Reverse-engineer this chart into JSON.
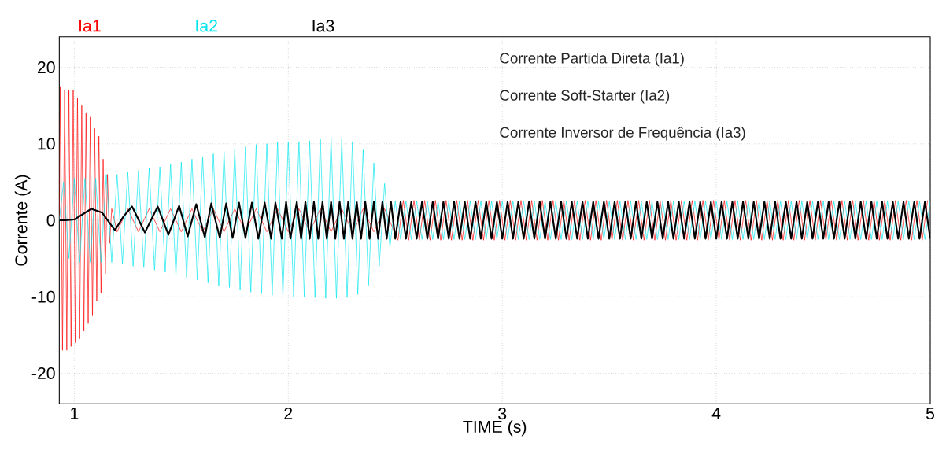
{
  "chart_data": {
    "type": "line",
    "xlabel": "TIME (s)",
    "ylabel": "Corrente (A)",
    "xlim": [
      0.93,
      5
    ],
    "ylim": [
      -24,
      24
    ],
    "xticks": [
      1,
      2,
      3,
      4,
      5
    ],
    "yticks": [
      -20,
      -10,
      0,
      10,
      20
    ],
    "grid": true,
    "legend": "top left",
    "marker": "none",
    "line_style": "solid",
    "annotations": [
      "Corrente Partida Direta (Ia1)",
      "Corrente Soft-Starter (Ia2)",
      "Corrente Inversor de Frequência (Ia3)"
    ],
    "series": [
      {
        "name": "Ia1",
        "color": "#ff0000",
        "x": [
          0.93,
          0.935,
          0.945,
          0.955,
          0.965,
          0.975,
          0.985,
          0.995,
          1.005,
          1.015,
          1.025,
          1.035,
          1.045,
          1.055,
          1.065,
          1.075,
          1.085,
          1.095,
          1.105,
          1.115,
          1.125,
          1.135,
          1.145,
          1.155,
          1.165,
          1.175,
          1.2,
          1.25,
          1.3,
          1.35,
          1.4,
          1.45,
          1.5,
          1.55,
          1.6,
          1.65,
          1.7,
          1.75,
          1.8,
          1.85,
          1.9,
          1.95,
          2.0,
          2.05,
          2.1,
          2.15,
          2.2,
          2.25,
          2.3,
          2.35,
          2.4,
          2.45,
          2.5125,
          2.5375,
          2.5625,
          2.5875,
          2.6125,
          2.6375,
          2.6625,
          2.6875,
          2.7125,
          2.7375,
          2.7625,
          2.7875,
          2.8125,
          2.8375,
          2.8625,
          2.8875,
          2.9125,
          2.9375,
          2.9625,
          2.9875,
          3.0125,
          3.0375,
          3.0625,
          3.0875,
          3.1125,
          3.1375,
          3.1625,
          3.1875,
          3.2125,
          3.2375,
          3.2625,
          3.2875,
          3.3125,
          3.3375,
          3.3625,
          3.3875,
          3.4125,
          3.4375,
          3.4625,
          3.4875,
          3.5125,
          3.5375,
          3.5625,
          3.5875,
          3.6125,
          3.6375,
          3.6625,
          3.6875,
          3.7125,
          3.7375,
          3.7625,
          3.7875,
          3.8125,
          3.8375,
          3.8625,
          3.8875,
          3.9125,
          3.9375,
          3.9625,
          3.9875,
          4.0125,
          4.0375,
          4.0625,
          4.0875,
          4.1125,
          4.1375,
          4.1625,
          4.1875,
          4.2125,
          4.2375,
          4.2625,
          4.2875,
          4.3125,
          4.3375,
          4.3625,
          4.3875,
          4.4125,
          4.4375,
          4.4625,
          4.4875,
          4.5125,
          4.5375,
          4.5625,
          4.5875,
          4.6125,
          4.6375,
          4.6625,
          4.6875,
          4.7125,
          4.7375,
          4.7625,
          4.7875,
          4.8125,
          4.8375,
          4.8625,
          4.8875,
          4.9125,
          4.9375,
          4.9625,
          4.9875
        ],
        "values": [
          0,
          17.5,
          -17,
          17,
          -17,
          17,
          -16.5,
          17,
          -16,
          16,
          -15.5,
          15,
          -14.5,
          14,
          -13.5,
          13.5,
          -12.5,
          12,
          -10.5,
          11,
          -9.5,
          8,
          -7,
          6,
          -3,
          1.5,
          -1.5,
          1.5,
          -1.5,
          1.5,
          -1.5,
          1.5,
          -1.5,
          1.5,
          -1.5,
          1.5,
          -1.5,
          1.5,
          -1.5,
          1.5,
          -1.5,
          1.5,
          -1.5,
          1.5,
          -1.5,
          1.5,
          -1.5,
          1.5,
          -1.5,
          1.5,
          -1.5,
          1.5,
          -2.6,
          2.6,
          -2.6,
          2.6,
          -2.6,
          2.6,
          -2.6,
          2.6,
          -2.6,
          2.6,
          -2.6,
          2.6,
          -2.6,
          2.6,
          -2.6,
          2.6,
          -2.6,
          2.6,
          -2.6,
          2.6,
          -2.6,
          2.6,
          -2.6,
          2.6,
          -2.6,
          2.6,
          -2.6,
          2.6,
          -2.6,
          2.6,
          -2.6,
          2.6,
          -2.6,
          2.6,
          -2.6,
          2.6,
          -2.6,
          2.6,
          -2.6,
          2.6,
          -2.6,
          2.6,
          -2.6,
          2.6,
          -2.6,
          2.6,
          -2.6,
          2.6,
          -2.6,
          2.6,
          -2.6,
          2.6,
          -2.6,
          2.6,
          -2.6,
          2.6,
          -2.6,
          2.6,
          -2.6,
          2.6,
          -2.6,
          2.6,
          -2.6,
          2.6,
          -2.6,
          2.6,
          -2.6,
          2.6,
          -2.6,
          2.6,
          -2.6,
          2.6,
          -2.6,
          2.6,
          -2.6,
          2.6,
          -2.6,
          2.6,
          -2.6,
          2.6,
          -2.6,
          2.6,
          -2.6,
          2.6,
          -2.6,
          2.6,
          -2.6,
          2.6,
          -2.6,
          2.6,
          -2.6,
          2.6,
          -2.6,
          2.6,
          -2.6,
          2.6,
          -2.6,
          2.6,
          -2.6,
          2.6
        ]
      },
      {
        "name": "Ia2",
        "color": "#00e5ee",
        "x": [
          0.93,
          0.95,
          0.975,
          1.0,
          1.025,
          1.05,
          1.075,
          1.1,
          1.125,
          1.15,
          1.175,
          1.2,
          1.225,
          1.25,
          1.275,
          1.3,
          1.325,
          1.35,
          1.375,
          1.4,
          1.425,
          1.45,
          1.475,
          1.5,
          1.525,
          1.55,
          1.575,
          1.6,
          1.625,
          1.65,
          1.675,
          1.7,
          1.725,
          1.75,
          1.775,
          1.8,
          1.825,
          1.85,
          1.875,
          1.9,
          1.925,
          1.95,
          1.975,
          2.0,
          2.025,
          2.05,
          2.075,
          2.1,
          2.125,
          2.15,
          2.175,
          2.2,
          2.225,
          2.25,
          2.275,
          2.3,
          2.325,
          2.35,
          2.375,
          2.4,
          2.425,
          2.45,
          2.475,
          2.5,
          2.525,
          2.55,
          2.575,
          2.6,
          2.625,
          2.65,
          2.675,
          2.7,
          2.725,
          2.75,
          2.775,
          2.8,
          2.825,
          2.85,
          2.875,
          2.9,
          2.925,
          2.95,
          2.975,
          3.0,
          3.025,
          3.05,
          3.075,
          3.1,
          3.125,
          3.15,
          3.175,
          3.2,
          3.225,
          3.25,
          3.275,
          3.3,
          3.325,
          3.35,
          3.375,
          3.4,
          3.425,
          3.45,
          3.475,
          3.5,
          3.525,
          3.55,
          3.575,
          3.6,
          3.625,
          3.65,
          3.675,
          3.7,
          3.725,
          3.75,
          3.775,
          3.8,
          3.825,
          3.85,
          3.875,
          3.9,
          3.925,
          3.95,
          3.975,
          4.0,
          4.025,
          4.05,
          4.075,
          4.1,
          4.125,
          4.15,
          4.175,
          4.2,
          4.225,
          4.25,
          4.275,
          4.3,
          4.325,
          4.35,
          4.375,
          4.4,
          4.425,
          4.45,
          4.475,
          4.5,
          4.525,
          4.55,
          4.575,
          4.6,
          4.625,
          4.65,
          4.675,
          4.7,
          4.725,
          4.75,
          4.775,
          4.8,
          4.825,
          4.85,
          4.875,
          4.9,
          4.925,
          4.95,
          4.975,
          5.0
        ],
        "values": [
          0,
          5,
          -5,
          5.5,
          -5.5,
          5.5,
          -5.5,
          5.5,
          -5.5,
          6,
          -5.5,
          6,
          -5.7,
          6.3,
          -6,
          6.5,
          -6.2,
          6.8,
          -6.5,
          7,
          -6.8,
          7.3,
          -7.2,
          7.6,
          -7.5,
          8,
          -7.8,
          8.3,
          -8.2,
          8.7,
          -8.6,
          9,
          -8.8,
          9.3,
          -9.1,
          9.6,
          -9.4,
          9.9,
          -9.6,
          10,
          -9.8,
          10.2,
          -9.9,
          10.3,
          -10,
          10.3,
          -10,
          10.4,
          -10.1,
          10.6,
          -10.2,
          10.7,
          -10.2,
          10.6,
          -10.1,
          10.3,
          -9.7,
          9.2,
          -8.5,
          7.5,
          -6,
          4.8,
          -3.5,
          2.5,
          -2.5,
          2.5,
          -2.5,
          2.5,
          -2.5,
          2.5,
          -2.5,
          2.5,
          -2.5,
          2.5,
          -2.5,
          2.5,
          -2.5,
          2.5,
          -2.5,
          2.5,
          -2.5,
          2.5,
          -2.5,
          2.5,
          -2.5,
          2.5,
          -2.5,
          2.5,
          -2.5,
          2.5,
          -2.5,
          2.5,
          -2.5,
          2.5,
          -2.5,
          2.5,
          -2.5,
          2.5,
          -2.5,
          2.5,
          -2.5,
          2.5,
          -2.5,
          2.5,
          -2.5,
          2.5,
          -2.5,
          2.5,
          -2.5,
          2.5,
          -2.5,
          2.5,
          -2.5,
          2.5,
          -2.5,
          2.5,
          -2.5,
          2.5,
          -2.5,
          2.5,
          -2.5,
          2.5,
          -2.5,
          2.5,
          -2.5,
          2.5,
          -2.5,
          2.5,
          -2.5,
          2.5,
          -2.5,
          2.5,
          -2.5,
          2.5,
          -2.5,
          2.5,
          -2.5,
          2.5,
          -2.5,
          2.5,
          -2.5,
          2.5,
          -2.5,
          2.5,
          -2.5,
          2.5,
          -2.5,
          2.5,
          -2.5,
          2.5,
          -2.5,
          2.5,
          -2.5,
          2.5,
          -2.5,
          2.5,
          -2.5,
          2.5,
          -2.5,
          2.5,
          -2.5,
          2.5,
          -2.5,
          2.5
        ]
      },
      {
        "name": "Ia3",
        "color": "#000000",
        "x": [
          0.93,
          0.96,
          1.0,
          1.04,
          1.08,
          1.13,
          1.19,
          1.23,
          1.27,
          1.33,
          1.39,
          1.44,
          1.49,
          1.53,
          1.57,
          1.61,
          1.64,
          1.68,
          1.71,
          1.74,
          1.77,
          1.8,
          1.83,
          1.86,
          1.89,
          1.92,
          1.94,
          1.97,
          1.99,
          2.01,
          2.04,
          2.06,
          2.08,
          2.1,
          2.12,
          2.14,
          2.16,
          2.18,
          2.2,
          2.22,
          2.24,
          2.26,
          2.28,
          2.3,
          2.32,
          2.34,
          2.36,
          2.38,
          2.4,
          2.42,
          2.44,
          2.46,
          2.48,
          2.5,
          2.525,
          2.55,
          2.575,
          2.6,
          2.625,
          2.65,
          2.675,
          2.7,
          2.725,
          2.75,
          2.775,
          2.8,
          2.825,
          2.85,
          2.875,
          2.9,
          2.925,
          2.95,
          2.975,
          3.0,
          3.025,
          3.05,
          3.075,
          3.1,
          3.125,
          3.15,
          3.175,
          3.2,
          3.225,
          3.25,
          3.275,
          3.3,
          3.325,
          3.35,
          3.375,
          3.4,
          3.425,
          3.45,
          3.475,
          3.5,
          3.525,
          3.55,
          3.575,
          3.6,
          3.625,
          3.65,
          3.675,
          3.7,
          3.725,
          3.75,
          3.775,
          3.8,
          3.825,
          3.85,
          3.875,
          3.9,
          3.925,
          3.95,
          3.975,
          4.0,
          4.025,
          4.05,
          4.075,
          4.1,
          4.125,
          4.15,
          4.175,
          4.2,
          4.225,
          4.25,
          4.275,
          4.3,
          4.325,
          4.35,
          4.375,
          4.4,
          4.425,
          4.45,
          4.475,
          4.5,
          4.525,
          4.55,
          4.575,
          4.6,
          4.625,
          4.65,
          4.675,
          4.7,
          4.725,
          4.75,
          4.775,
          4.8,
          4.825,
          4.85,
          4.875,
          4.9,
          4.925,
          4.95,
          4.975,
          5.0
        ],
        "values": [
          0,
          0,
          0.1,
          0.8,
          1.5,
          1.0,
          -1.3,
          0.5,
          1.8,
          -1.6,
          1.8,
          -1.9,
          1.9,
          -2.1,
          2.1,
          -2.2,
          2.2,
          -2.3,
          2.2,
          -2.3,
          2.3,
          -2.3,
          2.3,
          -2.4,
          2.3,
          -2.4,
          2.3,
          -2.4,
          2.4,
          -2.4,
          2.4,
          -2.4,
          2.4,
          -2.4,
          2.4,
          -2.4,
          2.4,
          -2.4,
          2.4,
          -2.4,
          2.4,
          -2.4,
          2.4,
          -2.4,
          2.4,
          -2.4,
          2.4,
          -2.4,
          2.4,
          -2.4,
          2.4,
          -2.4,
          2.4,
          -2.4,
          2.4,
          -2.4,
          2.4,
          -2.4,
          2.4,
          -2.4,
          2.4,
          -2.4,
          2.4,
          -2.4,
          2.4,
          -2.4,
          2.4,
          -2.4,
          2.4,
          -2.4,
          2.4,
          -2.4,
          2.4,
          -2.4,
          2.4,
          -2.4,
          2.4,
          -2.4,
          2.4,
          -2.4,
          2.4,
          -2.4,
          2.4,
          -2.4,
          2.4,
          -2.4,
          2.4,
          -2.4,
          2.4,
          -2.4,
          2.4,
          -2.4,
          2.4,
          -2.4,
          2.4,
          -2.4,
          2.4,
          -2.4,
          2.4,
          -2.4,
          2.4,
          -2.4,
          2.4,
          -2.4,
          2.4,
          -2.4,
          2.4,
          -2.4,
          2.4,
          -2.4,
          2.4,
          -2.4,
          2.4,
          -2.4,
          2.4,
          -2.4,
          2.4,
          -2.4,
          2.4,
          -2.4,
          2.4,
          -2.4,
          2.4,
          -2.4,
          2.4,
          -2.4,
          2.4,
          -2.4,
          2.4,
          -2.4,
          2.4,
          -2.4,
          2.4,
          -2.4,
          2.4,
          -2.4,
          2.4,
          -2.4,
          2.4,
          -2.4,
          2.4,
          -2.4,
          2.4,
          -2.4,
          2.4,
          -2.4,
          2.4,
          -2.4,
          2.4,
          -2.4,
          2.4,
          -2.4,
          2.4,
          -2.4
        ]
      }
    ]
  }
}
